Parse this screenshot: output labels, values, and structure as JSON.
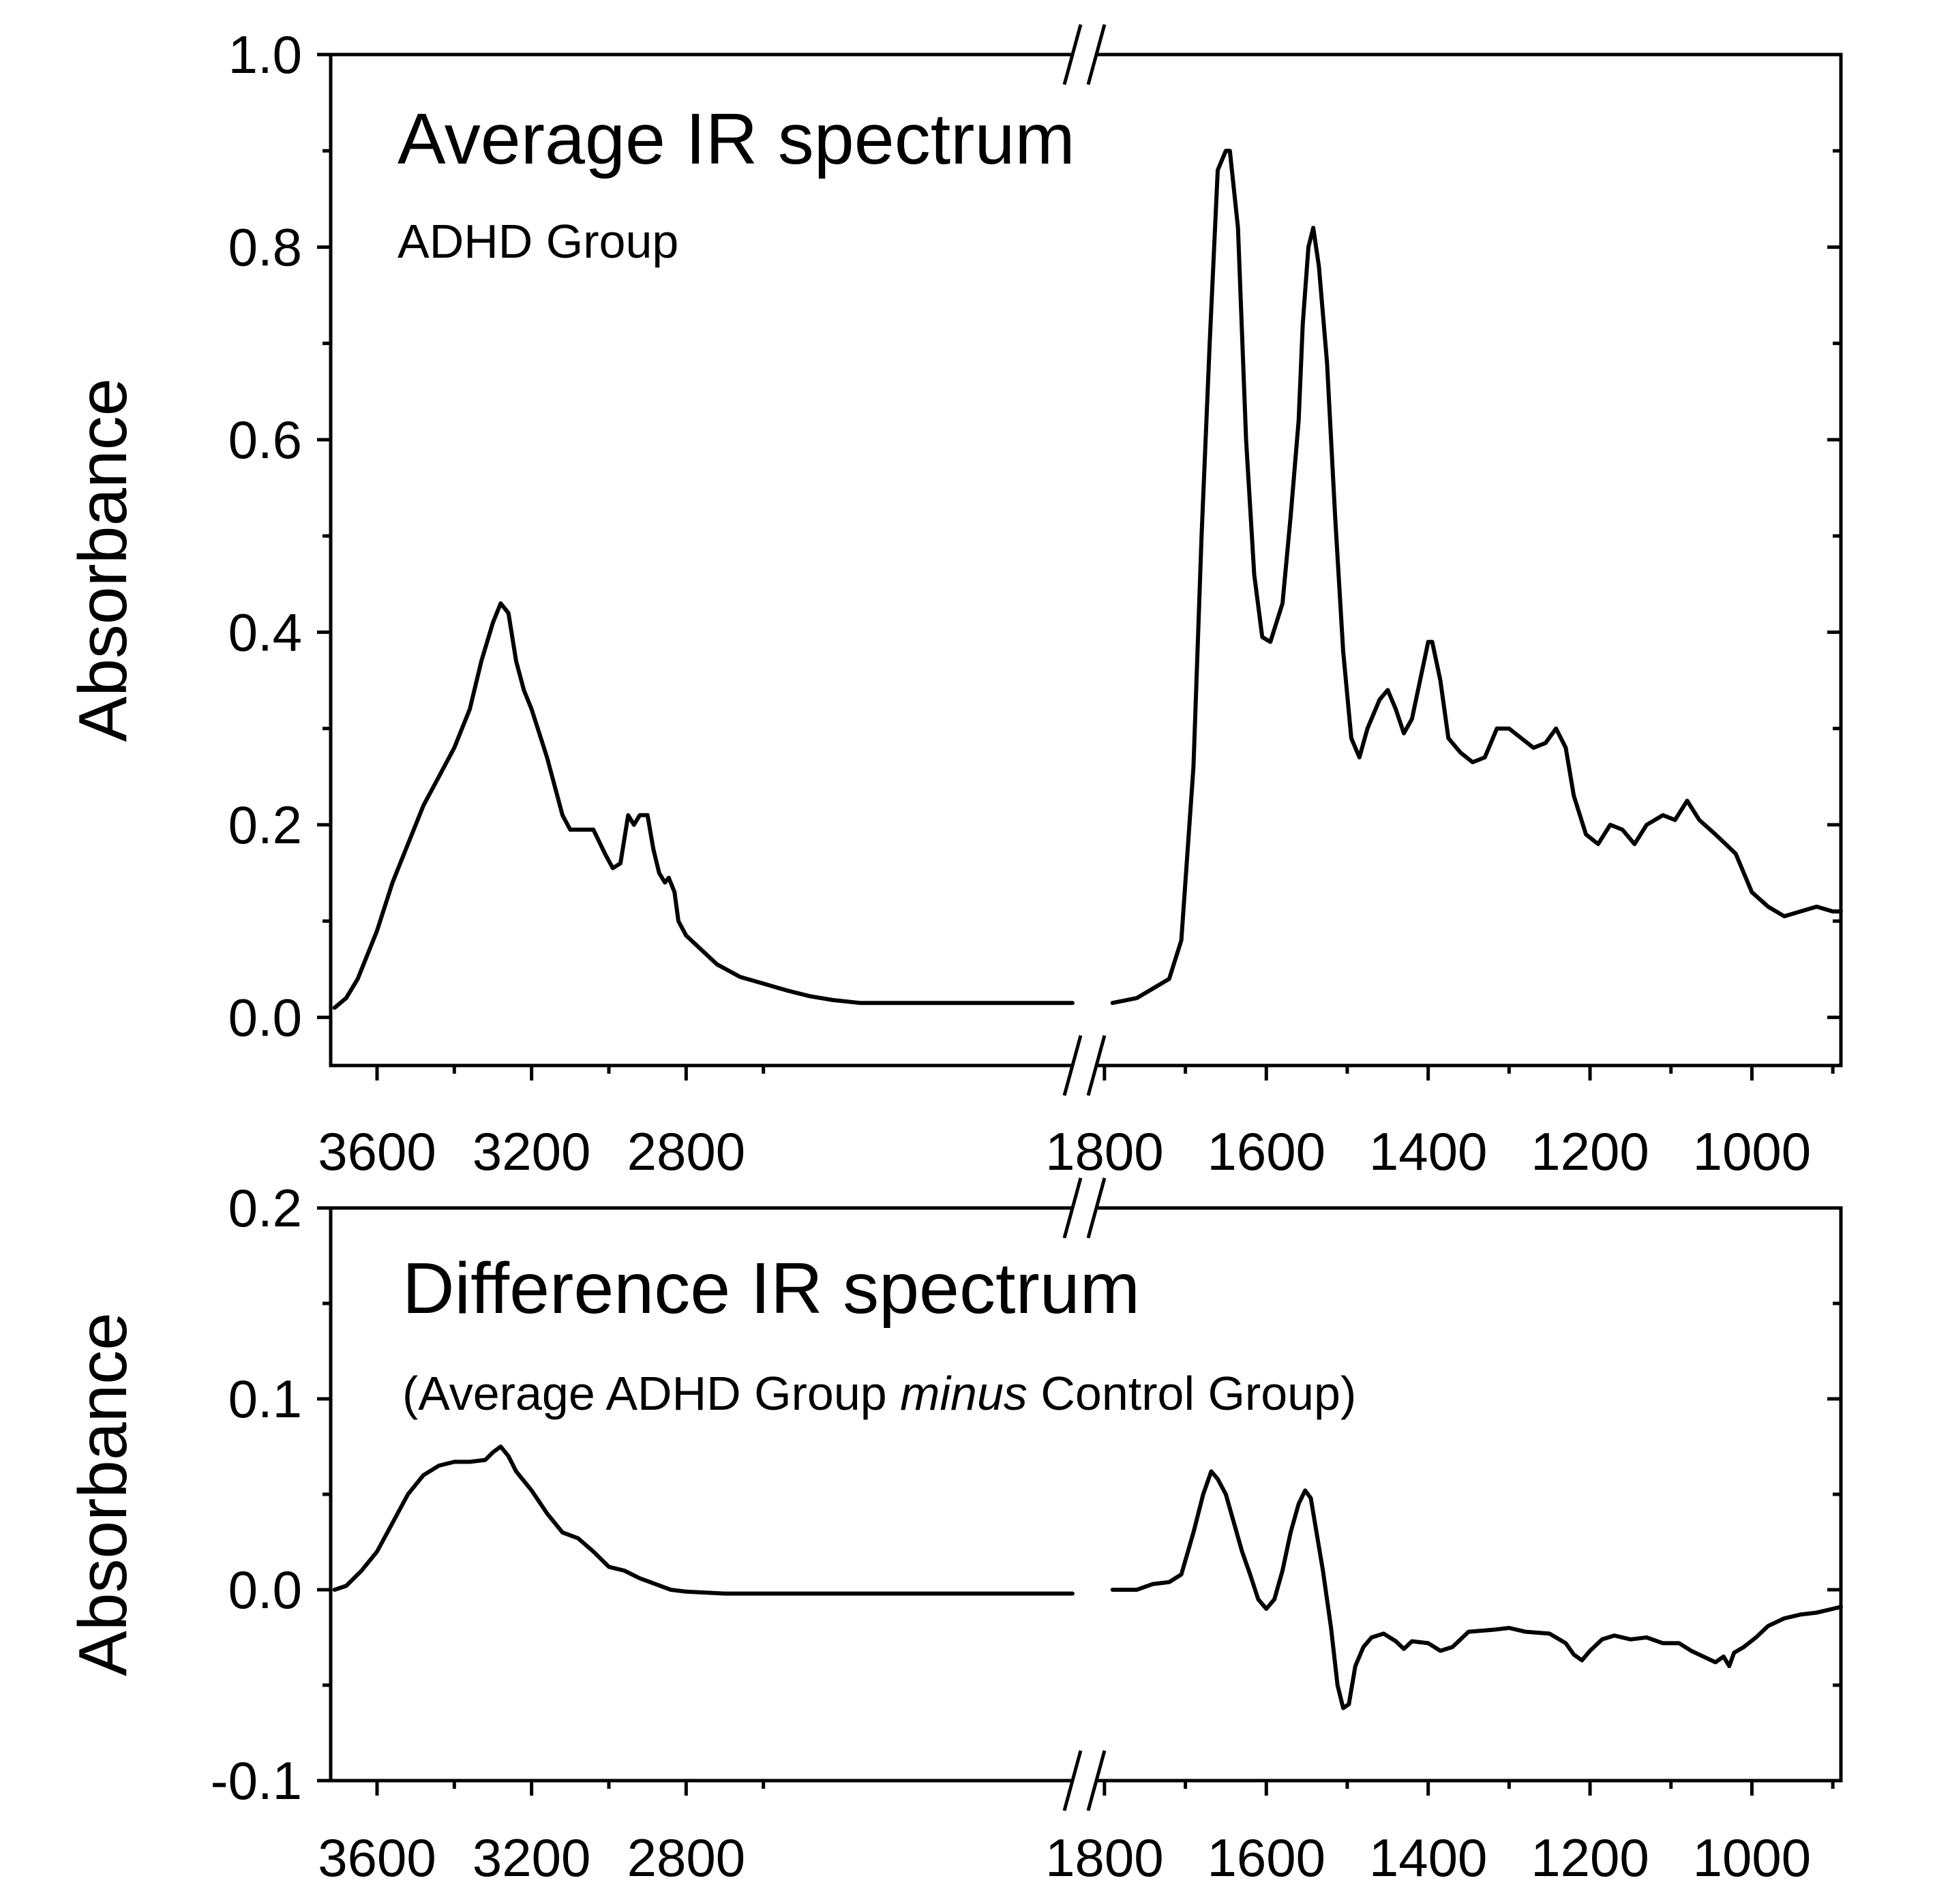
{
  "chart_data": [
    {
      "type": "line",
      "panel": "top",
      "title": "Average IR spectrum",
      "subtitle": "ADHD Group",
      "ylabel": "Absorbance",
      "xlabel": "",
      "ylim": [
        -0.05,
        1.0
      ],
      "y_ticks": [
        0.0,
        0.2,
        0.4,
        0.6,
        0.8,
        1.0
      ],
      "y_tick_labels": [
        "0.0",
        "0.2",
        "0.4",
        "0.6",
        "0.8",
        "1.0"
      ],
      "x_axis_break": {
        "left_range": [
          3720,
          1800
        ],
        "right_range": [
          1810,
          890
        ]
      },
      "x_ticks_left": [
        3600,
        3200,
        2800
      ],
      "x_ticks_right": [
        1800,
        1600,
        1400,
        1200,
        1000
      ],
      "x_tick_labels": [
        "3600",
        "3200",
        "2800",
        "1800",
        "1600",
        "1400",
        "1200",
        "1000"
      ],
      "series": [
        {
          "name": "ADHD Group",
          "segments": [
            [
              [
                3710,
                0.01
              ],
              [
                3680,
                0.02
              ],
              [
                3650,
                0.04
              ],
              [
                3600,
                0.09
              ],
              [
                3560,
                0.14
              ],
              [
                3520,
                0.18
              ],
              [
                3480,
                0.22
              ],
              [
                3440,
                0.25
              ],
              [
                3400,
                0.28
              ],
              [
                3360,
                0.32
              ],
              [
                3330,
                0.37
              ],
              [
                3300,
                0.41
              ],
              [
                3280,
                0.43
              ],
              [
                3260,
                0.42
              ],
              [
                3240,
                0.37
              ],
              [
                3220,
                0.34
              ],
              [
                3200,
                0.32
              ],
              [
                3160,
                0.27
              ],
              [
                3120,
                0.21
              ],
              [
                3100,
                0.195
              ],
              [
                3070,
                0.195
              ],
              [
                3040,
                0.195
              ],
              [
                3010,
                0.17
              ],
              [
                2990,
                0.155
              ],
              [
                2970,
                0.16
              ],
              [
                2950,
                0.21
              ],
              [
                2935,
                0.2
              ],
              [
                2920,
                0.21
              ],
              [
                2900,
                0.21
              ],
              [
                2885,
                0.175
              ],
              [
                2870,
                0.15
              ],
              [
                2855,
                0.14
              ],
              [
                2845,
                0.145
              ],
              [
                2830,
                0.13
              ],
              [
                2820,
                0.1
              ],
              [
                2800,
                0.085
              ],
              [
                2760,
                0.07
              ],
              [
                2720,
                0.055
              ],
              [
                2660,
                0.042
              ],
              [
                2600,
                0.035
              ],
              [
                2540,
                0.028
              ],
              [
                2480,
                0.022
              ],
              [
                2420,
                0.018
              ],
              [
                2350,
                0.015
              ],
              [
                1800,
                0.015
              ]
            ],
            [
              [
                1790,
                0.015
              ],
              [
                1760,
                0.02
              ],
              [
                1740,
                0.03
              ],
              [
                1720,
                0.04
              ],
              [
                1705,
                0.08
              ],
              [
                1690,
                0.26
              ],
              [
                1680,
                0.5
              ],
              [
                1670,
                0.7
              ],
              [
                1660,
                0.88
              ],
              [
                1650,
                0.9
              ],
              [
                1645,
                0.9
              ],
              [
                1635,
                0.82
              ],
              [
                1625,
                0.6
              ],
              [
                1615,
                0.46
              ],
              [
                1605,
                0.395
              ],
              [
                1595,
                0.39
              ],
              [
                1580,
                0.43
              ],
              [
                1570,
                0.52
              ],
              [
                1560,
                0.62
              ],
              [
                1555,
                0.72
              ],
              [
                1548,
                0.8
              ],
              [
                1542,
                0.82
              ],
              [
                1535,
                0.78
              ],
              [
                1525,
                0.68
              ],
              [
                1515,
                0.52
              ],
              [
                1505,
                0.38
              ],
              [
                1495,
                0.29
              ],
              [
                1485,
                0.27
              ],
              [
                1475,
                0.3
              ],
              [
                1460,
                0.33
              ],
              [
                1450,
                0.34
              ],
              [
                1440,
                0.32
              ],
              [
                1430,
                0.295
              ],
              [
                1420,
                0.31
              ],
              [
                1410,
                0.35
              ],
              [
                1400,
                0.39
              ],
              [
                1395,
                0.39
              ],
              [
                1385,
                0.35
              ],
              [
                1375,
                0.29
              ],
              [
                1360,
                0.275
              ],
              [
                1345,
                0.265
              ],
              [
                1330,
                0.27
              ],
              [
                1315,
                0.3
              ],
              [
                1300,
                0.3
              ],
              [
                1285,
                0.29
              ],
              [
                1270,
                0.28
              ],
              [
                1255,
                0.285
              ],
              [
                1242,
                0.3
              ],
              [
                1230,
                0.28
              ],
              [
                1220,
                0.23
              ],
              [
                1205,
                0.19
              ],
              [
                1190,
                0.18
              ],
              [
                1175,
                0.2
              ],
              [
                1160,
                0.195
              ],
              [
                1145,
                0.18
              ],
              [
                1130,
                0.2
              ],
              [
                1110,
                0.21
              ],
              [
                1095,
                0.205
              ],
              [
                1080,
                0.225
              ],
              [
                1065,
                0.205
              ],
              [
                1045,
                0.19
              ],
              [
                1020,
                0.17
              ],
              [
                1000,
                0.13
              ],
              [
                980,
                0.115
              ],
              [
                960,
                0.105
              ],
              [
                940,
                0.11
              ],
              [
                920,
                0.115
              ],
              [
                900,
                0.11
              ],
              [
                890,
                0.11
              ]
            ]
          ]
        }
      ]
    },
    {
      "type": "line",
      "panel": "bottom",
      "title": "Difference IR spectrum",
      "subtitle_parts": {
        "before": "(Average ADHD Group ",
        "italic": "minus",
        "after": " Control Group)"
      },
      "ylabel": "Absorbance",
      "xlabel": "",
      "ylim": [
        -0.1,
        0.2
      ],
      "y_ticks": [
        -0.1,
        0.0,
        0.1,
        0.2
      ],
      "y_tick_labels": [
        "-0.1",
        "0.0",
        "0.1",
        "0.2"
      ],
      "x_axis_break": {
        "left_range": [
          3720,
          1800
        ],
        "right_range": [
          1810,
          890
        ]
      },
      "x_ticks_left": [
        3600,
        3200,
        2800
      ],
      "x_ticks_right": [
        1800,
        1600,
        1400,
        1200,
        1000
      ],
      "x_tick_labels": [
        "3600",
        "3200",
        "2800",
        "1800",
        "1600",
        "1400",
        "1200",
        "1000"
      ],
      "series": [
        {
          "name": "ADHD minus Control",
          "segments": [
            [
              [
                3710,
                0.0
              ],
              [
                3680,
                0.002
              ],
              [
                3640,
                0.01
              ],
              [
                3600,
                0.02
              ],
              [
                3560,
                0.035
              ],
              [
                3520,
                0.05
              ],
              [
                3480,
                0.06
              ],
              [
                3440,
                0.065
              ],
              [
                3400,
                0.067
              ],
              [
                3360,
                0.067
              ],
              [
                3320,
                0.068
              ],
              [
                3300,
                0.072
              ],
              [
                3280,
                0.075
              ],
              [
                3260,
                0.07
              ],
              [
                3240,
                0.062
              ],
              [
                3200,
                0.052
              ],
              [
                3160,
                0.04
              ],
              [
                3120,
                0.03
              ],
              [
                3080,
                0.027
              ],
              [
                3040,
                0.02
              ],
              [
                3000,
                0.012
              ],
              [
                2960,
                0.01
              ],
              [
                2920,
                0.006
              ],
              [
                2880,
                0.003
              ],
              [
                2840,
                0.0
              ],
              [
                2800,
                -0.001
              ],
              [
                2700,
                -0.002
              ],
              [
                2600,
                -0.002
              ],
              [
                1800,
                -0.002
              ]
            ],
            [
              [
                1790,
                0.0
              ],
              [
                1760,
                0.0
              ],
              [
                1740,
                0.003
              ],
              [
                1720,
                0.004
              ],
              [
                1705,
                0.008
              ],
              [
                1690,
                0.03
              ],
              [
                1678,
                0.05
              ],
              [
                1668,
                0.062
              ],
              [
                1660,
                0.058
              ],
              [
                1650,
                0.05
              ],
              [
                1640,
                0.035
              ],
              [
                1630,
                0.02
              ],
              [
                1620,
                0.008
              ],
              [
                1610,
                -0.005
              ],
              [
                1600,
                -0.01
              ],
              [
                1590,
                -0.005
              ],
              [
                1580,
                0.01
              ],
              [
                1570,
                0.03
              ],
              [
                1560,
                0.045
              ],
              [
                1552,
                0.052
              ],
              [
                1545,
                0.048
              ],
              [
                1538,
                0.03
              ],
              [
                1530,
                0.01
              ],
              [
                1520,
                -0.02
              ],
              [
                1512,
                -0.05
              ],
              [
                1505,
                -0.062
              ],
              [
                1498,
                -0.06
              ],
              [
                1490,
                -0.04
              ],
              [
                1480,
                -0.03
              ],
              [
                1470,
                -0.025
              ],
              [
                1455,
                -0.023
              ],
              [
                1440,
                -0.027
              ],
              [
                1430,
                -0.031
              ],
              [
                1420,
                -0.027
              ],
              [
                1400,
                -0.028
              ],
              [
                1385,
                -0.032
              ],
              [
                1370,
                -0.03
              ],
              [
                1350,
                -0.022
              ],
              [
                1320,
                -0.021
              ],
              [
                1300,
                -0.02
              ],
              [
                1280,
                -0.022
              ],
              [
                1250,
                -0.023
              ],
              [
                1230,
                -0.028
              ],
              [
                1220,
                -0.034
              ],
              [
                1210,
                -0.037
              ],
              [
                1200,
                -0.032
              ],
              [
                1185,
                -0.026
              ],
              [
                1170,
                -0.024
              ],
              [
                1150,
                -0.026
              ],
              [
                1130,
                -0.025
              ],
              [
                1110,
                -0.028
              ],
              [
                1090,
                -0.028
              ],
              [
                1075,
                -0.032
              ],
              [
                1060,
                -0.035
              ],
              [
                1045,
                -0.038
              ],
              [
                1035,
                -0.035
              ],
              [
                1028,
                -0.04
              ],
              [
                1022,
                -0.033
              ],
              [
                1010,
                -0.03
              ],
              [
                995,
                -0.025
              ],
              [
                980,
                -0.019
              ],
              [
                960,
                -0.015
              ],
              [
                940,
                -0.013
              ],
              [
                920,
                -0.012
              ],
              [
                900,
                -0.01
              ],
              [
                890,
                -0.009
              ]
            ]
          ]
        }
      ]
    }
  ]
}
